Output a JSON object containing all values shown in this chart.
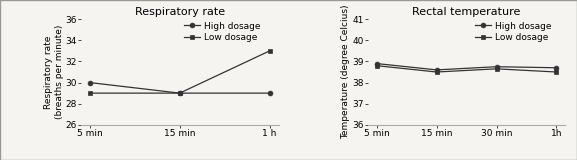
{
  "resp_title": "Respiratory rate",
  "resp_ylabel": "Respiratory rate\n(breaths per minute)",
  "resp_xtick_labels": [
    "5 min",
    "15 min",
    "1 h"
  ],
  "resp_ylim": [
    26,
    36
  ],
  "resp_yticks": [
    26,
    28,
    30,
    32,
    34,
    36
  ],
  "resp_high_dosage": [
    30,
    29,
    29
  ],
  "resp_low_dosage": [
    29,
    29,
    33
  ],
  "temp_title": "Rectal temperature",
  "temp_ylabel": "Temperature (degree Celcius)",
  "temp_xtick_labels": [
    "5 min",
    "15 min",
    "30 min",
    "1h"
  ],
  "temp_ylim": [
    36,
    41
  ],
  "temp_yticks": [
    36,
    37,
    38,
    39,
    40,
    41
  ],
  "temp_high_dosage": [
    38.9,
    38.6,
    38.75,
    38.7
  ],
  "temp_low_dosage": [
    38.8,
    38.5,
    38.65,
    38.5
  ],
  "line_color": "#333333",
  "high_marker": "o",
  "low_marker": "s",
  "line_width": 0.9,
  "marker_size": 3.5,
  "bg_color": "#f5f4f0",
  "plot_bg": "#ffffff",
  "legend_high": "High dosage",
  "legend_low": "Low dosage",
  "title_fontsize": 8,
  "label_fontsize": 6.5,
  "tick_fontsize": 6.5,
  "legend_fontsize": 6.5,
  "border_color": "#aaaaaa"
}
